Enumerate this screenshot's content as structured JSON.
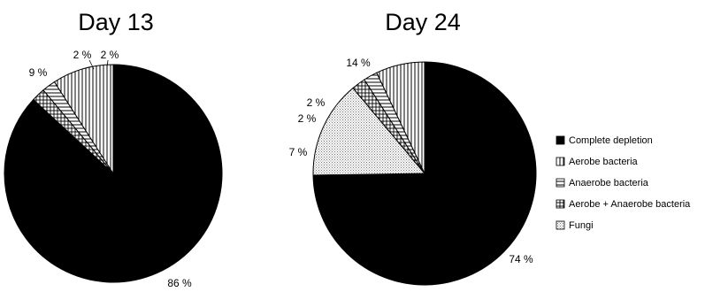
{
  "chart_data": [
    {
      "type": "pie",
      "title": "Day 13",
      "categories": [
        "Complete depletion",
        "Aerobe bacteria",
        "Anaerobe bacteria",
        "Aerobe + Anaerobe bacteria",
        "Fungi"
      ],
      "values": [
        86,
        9,
        2,
        2,
        0
      ],
      "labels": [
        "86 %",
        "9 %",
        "2 %",
        "2 %"
      ]
    },
    {
      "type": "pie",
      "title": "Day 24",
      "categories": [
        "Complete depletion",
        "Aerobe bacteria",
        "Anaerobe bacteria",
        "Aerobe + Anaerobe bacteria",
        "Fungi"
      ],
      "values": [
        74,
        7,
        2,
        2,
        14
      ],
      "labels": [
        "74 %",
        "7 %",
        "2 %",
        "2 %",
        "14 %"
      ]
    }
  ],
  "legend": [
    {
      "label": "Complete depletion",
      "pattern": "solid-black"
    },
    {
      "label": "Aerobe bacteria",
      "pattern": "vertical-stripes"
    },
    {
      "label": "Anaerobe bacteria",
      "pattern": "horizontal-stripes"
    },
    {
      "label": "Aerobe + Anaerobe bacteria",
      "pattern": "crosshatch"
    },
    {
      "label": "Fungi",
      "pattern": "dots"
    }
  ],
  "colors": {
    "slice_fill": "#000000",
    "stroke": "#000000",
    "background": "#ffffff"
  }
}
